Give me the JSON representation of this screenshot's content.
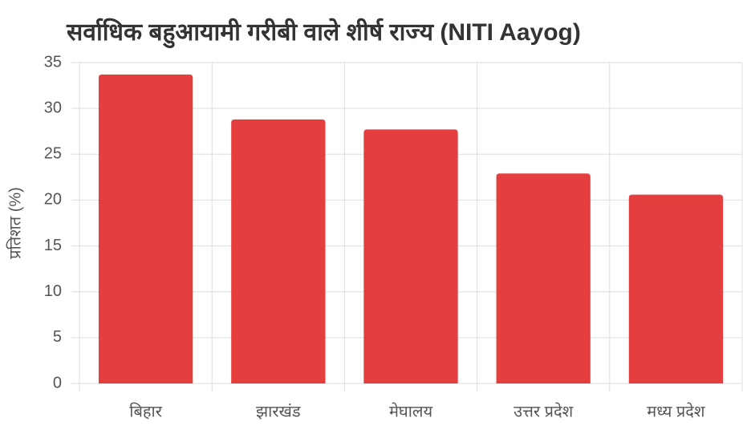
{
  "chart_data": {
    "type": "bar",
    "title": "सर्वाधिक बहुआयामी गरीबी वाले शीर्ष राज्य (NITI Aayog)",
    "y_label": "प्रतिशत (%)",
    "categories": [
      "बिहार",
      "झारखंड",
      "मेघालय",
      "उत्तर प्रदेश",
      "मध्य प्रदेश"
    ],
    "values": [
      33.7,
      28.8,
      27.7,
      22.9,
      20.6
    ],
    "color": "#e53e3e",
    "ylim": [
      0,
      35
    ],
    "yticks": [
      0,
      5,
      10,
      15,
      20,
      25,
      30,
      35
    ],
    "grid": true
  }
}
